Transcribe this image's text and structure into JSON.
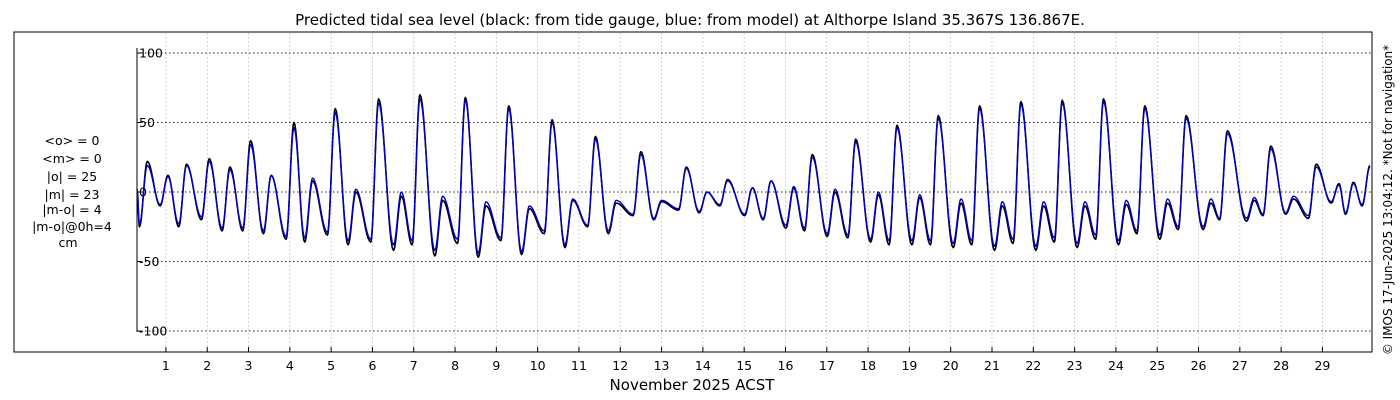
{
  "chart_data": {
    "type": "line",
    "title": "Predicted tidal sea level (black: from tide gauge, blue: from model) at Althorpe Island 35.367S 136.867E.",
    "xlabel": "November 2025 ACST",
    "ylabel": "",
    "x_ticks": [
      "1",
      "2",
      "3",
      "4",
      "5",
      "6",
      "7",
      "8",
      "9",
      "10",
      "11",
      "12",
      "13",
      "14",
      "15",
      "16",
      "17",
      "18",
      "19",
      "20",
      "21",
      "22",
      "23",
      "24",
      "25",
      "26",
      "27",
      "28",
      "29"
    ],
    "xlim": [
      0.3,
      30.2
    ],
    "y_ticks": [
      100,
      50,
      0,
      -50,
      -100
    ],
    "ylim": [
      -110,
      115
    ],
    "grid": true,
    "stats_lines": [
      "<o> = 0",
      "<m> = 0",
      "|o| = 25",
      "|m| = 23",
      "|m-o| = 4",
      "|m-o|@0h=4",
      "cm"
    ],
    "copyright": "© IMOS 17-Jun-2025 13:04:12. *Not for navigation*",
    "series": [
      {
        "color": "#000000",
        "peaks": [
          {
            "day": 0.55,
            "high": 22,
            "low": -25
          },
          {
            "day": 1.05,
            "high": 12,
            "low": -10
          },
          {
            "day": 1.5,
            "high": 20,
            "low": -25
          },
          {
            "day": 2.05,
            "high": 24,
            "low": -20
          },
          {
            "day": 2.55,
            "high": 18,
            "low": -28
          },
          {
            "day": 3.05,
            "high": 37,
            "low": -28
          },
          {
            "day": 3.55,
            "high": 12,
            "low": -30
          },
          {
            "day": 4.1,
            "high": 50,
            "low": -34
          },
          {
            "day": 4.55,
            "high": 8,
            "low": -36
          },
          {
            "day": 5.1,
            "high": 60,
            "low": -31
          },
          {
            "day": 5.6,
            "high": 0,
            "low": -38
          },
          {
            "day": 6.15,
            "high": 67,
            "low": -36
          },
          {
            "day": 6.7,
            "high": -3,
            "low": -42
          },
          {
            "day": 7.15,
            "high": 70,
            "low": -38
          },
          {
            "day": 7.7,
            "high": -6,
            "low": -46
          },
          {
            "day": 8.25,
            "high": 68,
            "low": -37
          },
          {
            "day": 8.75,
            "high": -10,
            "low": -47
          },
          {
            "day": 9.3,
            "high": 62,
            "low": -35
          },
          {
            "day": 9.8,
            "high": -12,
            "low": -45
          },
          {
            "day": 10.35,
            "high": 52,
            "low": -30
          },
          {
            "day": 10.85,
            "high": -6,
            "low": -40
          },
          {
            "day": 11.4,
            "high": 40,
            "low": -25
          },
          {
            "day": 11.9,
            "high": -8,
            "low": -30
          },
          {
            "day": 12.5,
            "high": 29,
            "low": -17
          },
          {
            "day": 13.0,
            "high": -7,
            "low": -20
          },
          {
            "day": 13.6,
            "high": 18,
            "low": -13
          },
          {
            "day": 14.1,
            "high": 0,
            "low": -15
          },
          {
            "day": 14.6,
            "high": 9,
            "low": -10
          },
          {
            "day": 15.2,
            "high": 3,
            "low": -17
          },
          {
            "day": 15.65,
            "high": 8,
            "low": -20
          },
          {
            "day": 16.2,
            "high": 3,
            "low": -26
          },
          {
            "day": 16.65,
            "high": 27,
            "low": -28
          },
          {
            "day": 17.2,
            "high": 0,
            "low": -32
          },
          {
            "day": 17.7,
            "high": 38,
            "low": -33
          },
          {
            "day": 18.25,
            "high": -2,
            "low": -36
          },
          {
            "day": 18.7,
            "high": 48,
            "low": -38
          },
          {
            "day": 19.25,
            "high": -4,
            "low": -38
          },
          {
            "day": 19.7,
            "high": 55,
            "low": -38
          },
          {
            "day": 20.25,
            "high": -8,
            "low": -40
          },
          {
            "day": 20.7,
            "high": 62,
            "low": -38
          },
          {
            "day": 21.25,
            "high": -10,
            "low": -42
          },
          {
            "day": 21.7,
            "high": 65,
            "low": -37
          },
          {
            "day": 22.25,
            "high": -10,
            "low": -42
          },
          {
            "day": 22.7,
            "high": 66,
            "low": -36
          },
          {
            "day": 23.25,
            "high": -10,
            "low": -40
          },
          {
            "day": 23.7,
            "high": 67,
            "low": -34
          },
          {
            "day": 24.25,
            "high": -9,
            "low": -38
          },
          {
            "day": 24.7,
            "high": 62,
            "low": -30
          },
          {
            "day": 25.25,
            "high": -8,
            "low": -34
          },
          {
            "day": 25.7,
            "high": 55,
            "low": -27
          },
          {
            "day": 26.3,
            "high": -8,
            "low": -27
          },
          {
            "day": 26.7,
            "high": 44,
            "low": -20
          },
          {
            "day": 27.35,
            "high": -6,
            "low": -21
          },
          {
            "day": 27.75,
            "high": 33,
            "low": -17
          },
          {
            "day": 28.3,
            "high": -5,
            "low": -16
          },
          {
            "day": 28.85,
            "high": 20,
            "low": -19
          },
          {
            "day": 29.4,
            "high": 6,
            "low": -8
          },
          {
            "day": 29.75,
            "high": 7,
            "low": -16
          },
          {
            "day": 30.15,
            "high": 19,
            "low": -10
          }
        ]
      },
      {
        "color": "#0000cc",
        "peaks": [
          {
            "day": 0.55,
            "high": 19,
            "low": -23
          },
          {
            "day": 1.05,
            "high": 11,
            "low": -9
          },
          {
            "day": 1.5,
            "high": 19,
            "low": -23
          },
          {
            "day": 2.05,
            "high": 22,
            "low": -18
          },
          {
            "day": 2.55,
            "high": 16,
            "low": -26
          },
          {
            "day": 3.05,
            "high": 34,
            "low": -26
          },
          {
            "day": 3.55,
            "high": 12,
            "low": -28
          },
          {
            "day": 4.1,
            "high": 46,
            "low": -32
          },
          {
            "day": 4.55,
            "high": 10,
            "low": -33
          },
          {
            "day": 5.1,
            "high": 57,
            "low": -29
          },
          {
            "day": 5.6,
            "high": 2,
            "low": -35
          },
          {
            "day": 6.15,
            "high": 64,
            "low": -34
          },
          {
            "day": 6.7,
            "high": 0,
            "low": -38
          },
          {
            "day": 7.15,
            "high": 67,
            "low": -35
          },
          {
            "day": 7.7,
            "high": -3,
            "low": -42
          },
          {
            "day": 8.25,
            "high": 66,
            "low": -34
          },
          {
            "day": 8.75,
            "high": -7,
            "low": -44
          },
          {
            "day": 9.3,
            "high": 60,
            "low": -33
          },
          {
            "day": 9.8,
            "high": -10,
            "low": -43
          },
          {
            "day": 10.35,
            "high": 50,
            "low": -28
          },
          {
            "day": 10.85,
            "high": -5,
            "low": -38
          },
          {
            "day": 11.4,
            "high": 38,
            "low": -24
          },
          {
            "day": 11.9,
            "high": -6,
            "low": -28
          },
          {
            "day": 12.5,
            "high": 27,
            "low": -16
          },
          {
            "day": 13.0,
            "high": -6,
            "low": -19
          },
          {
            "day": 13.6,
            "high": 17,
            "low": -12
          },
          {
            "day": 14.1,
            "high": 0,
            "low": -14
          },
          {
            "day": 14.6,
            "high": 8,
            "low": -9
          },
          {
            "day": 15.2,
            "high": 3,
            "low": -16
          },
          {
            "day": 15.65,
            "high": 8,
            "low": -19
          },
          {
            "day": 16.2,
            "high": 4,
            "low": -24
          },
          {
            "day": 16.65,
            "high": 25,
            "low": -26
          },
          {
            "day": 17.2,
            "high": 2,
            "low": -30
          },
          {
            "day": 17.7,
            "high": 36,
            "low": -31
          },
          {
            "day": 18.25,
            "high": 0,
            "low": -34
          },
          {
            "day": 18.7,
            "high": 46,
            "low": -35
          },
          {
            "day": 19.25,
            "high": -2,
            "low": -35
          },
          {
            "day": 19.7,
            "high": 53,
            "low": -35
          },
          {
            "day": 20.25,
            "high": -5,
            "low": -37
          },
          {
            "day": 20.7,
            "high": 60,
            "low": -35
          },
          {
            "day": 21.25,
            "high": -7,
            "low": -39
          },
          {
            "day": 21.7,
            "high": 63,
            "low": -34
          },
          {
            "day": 22.25,
            "high": -7,
            "low": -39
          },
          {
            "day": 22.7,
            "high": 64,
            "low": -33
          },
          {
            "day": 23.25,
            "high": -7,
            "low": -37
          },
          {
            "day": 23.7,
            "high": 65,
            "low": -31
          },
          {
            "day": 24.25,
            "high": -6,
            "low": -35
          },
          {
            "day": 24.7,
            "high": 60,
            "low": -28
          },
          {
            "day": 25.25,
            "high": -5,
            "low": -31
          },
          {
            "day": 25.7,
            "high": 53,
            "low": -25
          },
          {
            "day": 26.3,
            "high": -5,
            "low": -25
          },
          {
            "day": 26.7,
            "high": 42,
            "low": -19
          },
          {
            "day": 27.35,
            "high": -4,
            "low": -19
          },
          {
            "day": 27.75,
            "high": 31,
            "low": -16
          },
          {
            "day": 28.3,
            "high": -3,
            "low": -15
          },
          {
            "day": 28.85,
            "high": 18,
            "low": -17
          },
          {
            "day": 29.4,
            "high": 5,
            "low": -7
          },
          {
            "day": 29.75,
            "high": 6,
            "low": -15
          },
          {
            "day": 30.15,
            "high": 18,
            "low": -9
          }
        ]
      }
    ]
  }
}
